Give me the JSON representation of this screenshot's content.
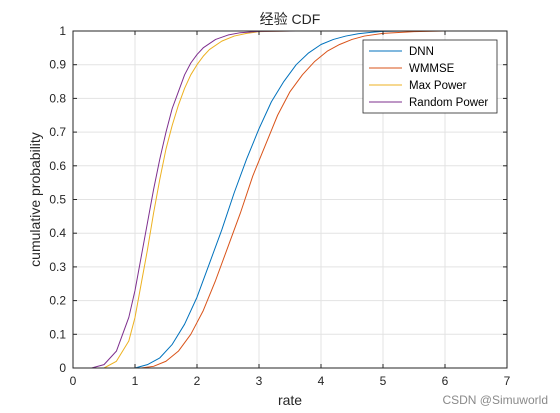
{
  "watermark": "CSDN @Simuworld",
  "chart_data": {
    "type": "line",
    "title": "经验 CDF",
    "xlabel": "rate",
    "ylabel": "cumulative probability",
    "xlim": [
      0,
      7
    ],
    "ylim": [
      0,
      1
    ],
    "xticks": [
      0,
      1,
      2,
      3,
      4,
      5,
      6,
      7
    ],
    "yticks": [
      0,
      0.1,
      0.2,
      0.3,
      0.4,
      0.5,
      0.6,
      0.7,
      0.8,
      0.9,
      1
    ],
    "grid": true,
    "legend_position": "top-right",
    "series": [
      {
        "name": "DNN",
        "color": "#0072BD",
        "x": [
          1.0,
          1.2,
          1.4,
          1.6,
          1.8,
          2.0,
          2.2,
          2.4,
          2.6,
          2.8,
          3.0,
          3.2,
          3.4,
          3.6,
          3.8,
          4.0,
          4.2,
          4.4,
          4.6,
          4.8,
          5.0,
          5.4,
          6.0
        ],
        "y": [
          0.0,
          0.01,
          0.03,
          0.07,
          0.13,
          0.21,
          0.31,
          0.41,
          0.52,
          0.62,
          0.71,
          0.79,
          0.85,
          0.9,
          0.935,
          0.96,
          0.975,
          0.985,
          0.992,
          0.996,
          0.999,
          1.0,
          1.0
        ]
      },
      {
        "name": "WMMSE",
        "color": "#D95319",
        "x": [
          1.1,
          1.3,
          1.5,
          1.7,
          1.9,
          2.1,
          2.3,
          2.5,
          2.7,
          2.9,
          3.1,
          3.3,
          3.5,
          3.7,
          3.9,
          4.1,
          4.3,
          4.5,
          4.7,
          5.0,
          5.5,
          6.0,
          6.7
        ],
        "y": [
          0.0,
          0.005,
          0.02,
          0.05,
          0.1,
          0.17,
          0.26,
          0.36,
          0.46,
          0.57,
          0.66,
          0.75,
          0.82,
          0.87,
          0.91,
          0.94,
          0.96,
          0.975,
          0.985,
          0.993,
          0.998,
          1.0,
          1.0
        ]
      },
      {
        "name": "Max Power",
        "color": "#EDB120",
        "x": [
          0.5,
          0.7,
          0.9,
          1.0,
          1.1,
          1.2,
          1.3,
          1.4,
          1.5,
          1.6,
          1.7,
          1.8,
          1.9,
          2.0,
          2.1,
          2.2,
          2.4,
          2.6,
          2.8,
          3.0,
          3.5
        ],
        "y": [
          0.0,
          0.02,
          0.08,
          0.15,
          0.25,
          0.35,
          0.46,
          0.56,
          0.65,
          0.72,
          0.78,
          0.83,
          0.87,
          0.9,
          0.925,
          0.945,
          0.97,
          0.985,
          0.993,
          0.998,
          1.0
        ]
      },
      {
        "name": "Random Power",
        "color": "#7E2F8E",
        "x": [
          0.3,
          0.5,
          0.7,
          0.9,
          1.0,
          1.1,
          1.2,
          1.3,
          1.4,
          1.5,
          1.6,
          1.7,
          1.8,
          1.9,
          2.0,
          2.1,
          2.3,
          2.5,
          2.7,
          3.0,
          3.6
        ],
        "y": [
          0.0,
          0.01,
          0.05,
          0.15,
          0.23,
          0.33,
          0.43,
          0.53,
          0.62,
          0.7,
          0.77,
          0.82,
          0.87,
          0.905,
          0.93,
          0.95,
          0.975,
          0.988,
          0.995,
          0.999,
          1.0
        ]
      }
    ]
  }
}
